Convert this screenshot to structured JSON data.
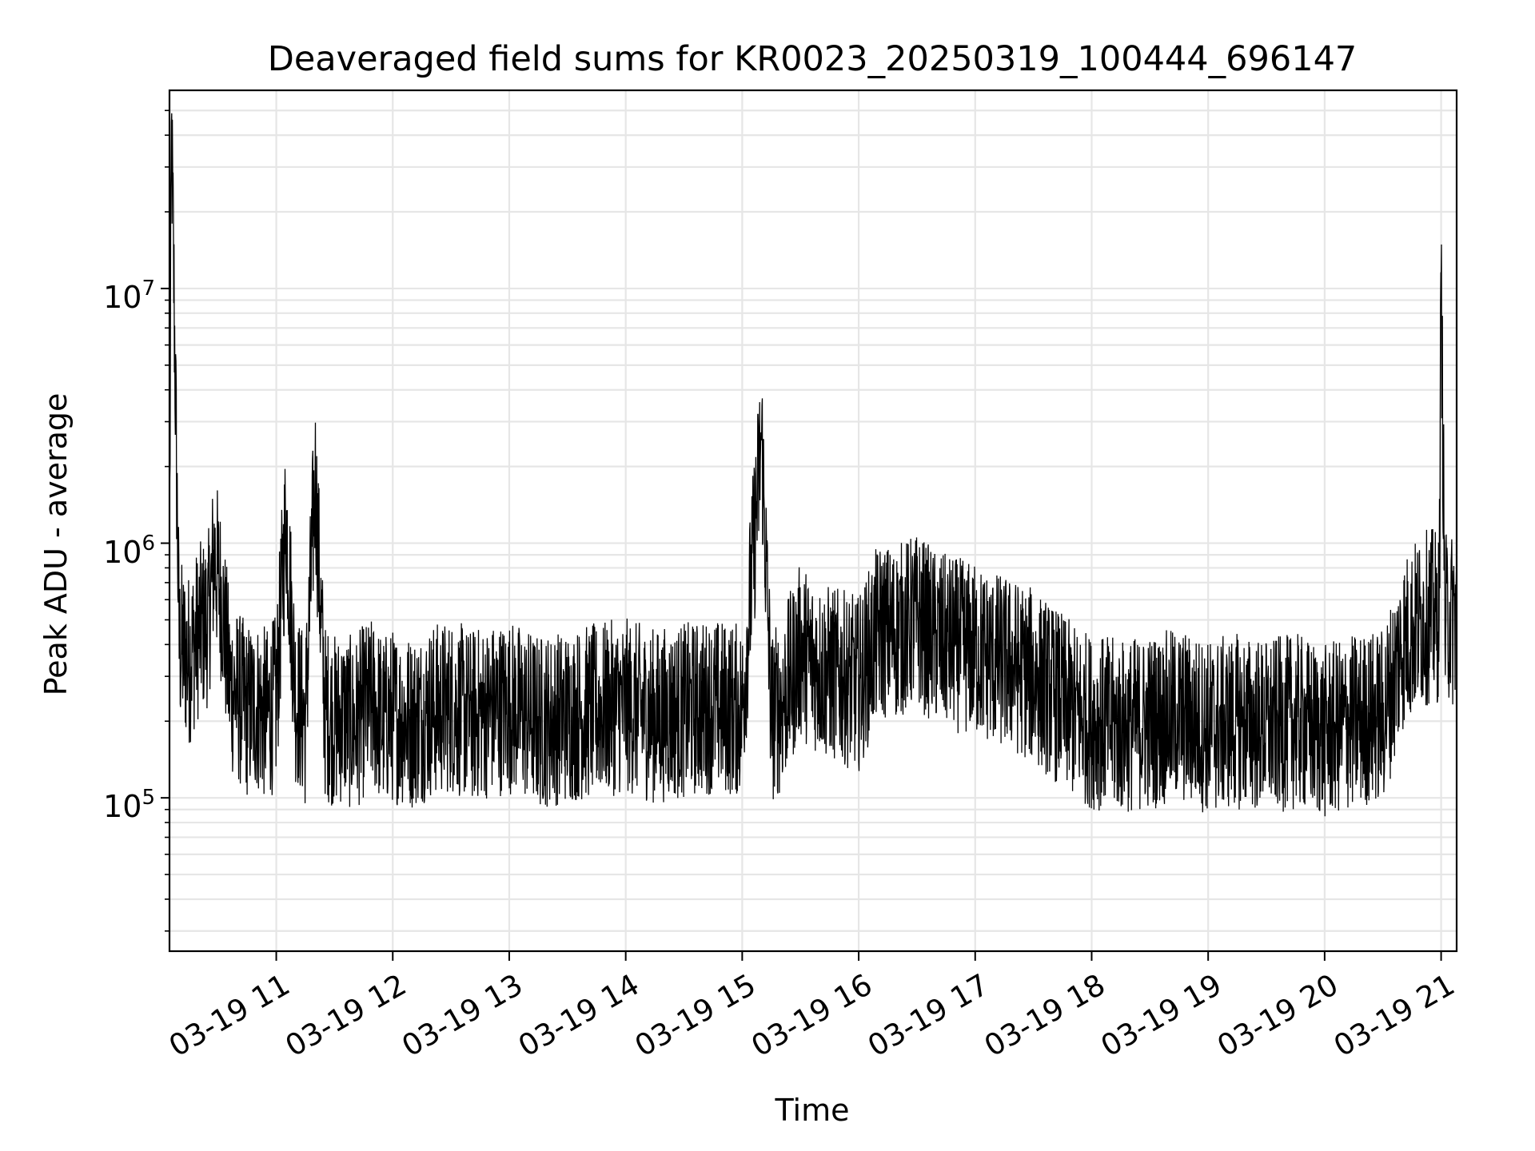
{
  "chart_data": {
    "type": "line",
    "title": "Deaveraged field sums for KR0023_20250319_100444_696147",
    "xlabel": "Time",
    "ylabel": "Peak ADU - average",
    "y_scale": "log",
    "xlim": [
      "2025-03-19 10:05",
      "2025-03-19 21:08"
    ],
    "ylim": [
      25000,
      60000000
    ],
    "x_ticks": [
      "03-19 11",
      "03-19 12",
      "03-19 13",
      "03-19 14",
      "03-19 15",
      "03-19 16",
      "03-19 17",
      "03-19 18",
      "03-19 19",
      "03-19 20",
      "03-19 21"
    ],
    "y_ticks": [
      {
        "value": 100000,
        "base": "10",
        "exp": "5"
      },
      {
        "value": 1000000,
        "base": "10",
        "exp": "6"
      },
      {
        "value": 10000000,
        "base": "10",
        "exp": "7"
      }
    ],
    "grid": true,
    "line_color": "#000000",
    "series": [
      {
        "x": [
          "10:05",
          "10:06",
          "10:10",
          "10:15",
          "10:20",
          "10:25",
          "10:28",
          "10:32",
          "10:36",
          "10:40",
          "10:45",
          "10:50",
          "10:55",
          "11:00",
          "11:05",
          "11:10",
          "11:15",
          "11:20",
          "11:25",
          "11:30",
          "11:35",
          "11:40",
          "11:45",
          "11:50",
          "11:55",
          "12:00",
          "12:10",
          "12:20",
          "12:30",
          "12:40",
          "12:50",
          "13:00",
          "13:15",
          "13:30",
          "13:45",
          "14:00",
          "14:15",
          "14:30",
          "14:45",
          "15:00",
          "15:10",
          "15:15",
          "15:20",
          "15:30",
          "15:40",
          "15:50",
          "16:00",
          "16:10",
          "16:20",
          "16:30",
          "16:40",
          "16:50",
          "17:00",
          "17:10",
          "17:20",
          "17:30",
          "17:40",
          "17:50",
          "18:00",
          "18:15",
          "18:30",
          "18:45",
          "19:00",
          "19:15",
          "19:30",
          "19:45",
          "20:00",
          "20:15",
          "20:30",
          "20:36",
          "20:40",
          "20:45",
          "20:50",
          "20:55",
          "20:59",
          "21:00",
          "21:02",
          "21:04",
          "21:06",
          "21:08"
        ],
        "y": [
          700000,
          45000000,
          400000,
          350000,
          450000,
          500000,
          900000,
          600000,
          280000,
          250000,
          220000,
          230000,
          210000,
          240000,
          1300000,
          250000,
          200000,
          1850000,
          220000,
          200000,
          210000,
          190000,
          220000,
          230000,
          200000,
          210000,
          200000,
          220000,
          230000,
          210000,
          220000,
          230000,
          200000,
          210000,
          220000,
          230000,
          210000,
          220000,
          230000,
          220000,
          2600000,
          210000,
          230000,
          380000,
          320000,
          300000,
          280000,
          450000,
          450000,
          500000,
          420000,
          400000,
          380000,
          350000,
          330000,
          300000,
          260000,
          220000,
          200000,
          190000,
          200000,
          210000,
          190000,
          200000,
          190000,
          200000,
          180000,
          200000,
          210000,
          300000,
          400000,
          450000,
          500000,
          520000,
          500000,
          11500000,
          480000,
          520000,
          500000,
          550000
        ]
      }
    ]
  }
}
